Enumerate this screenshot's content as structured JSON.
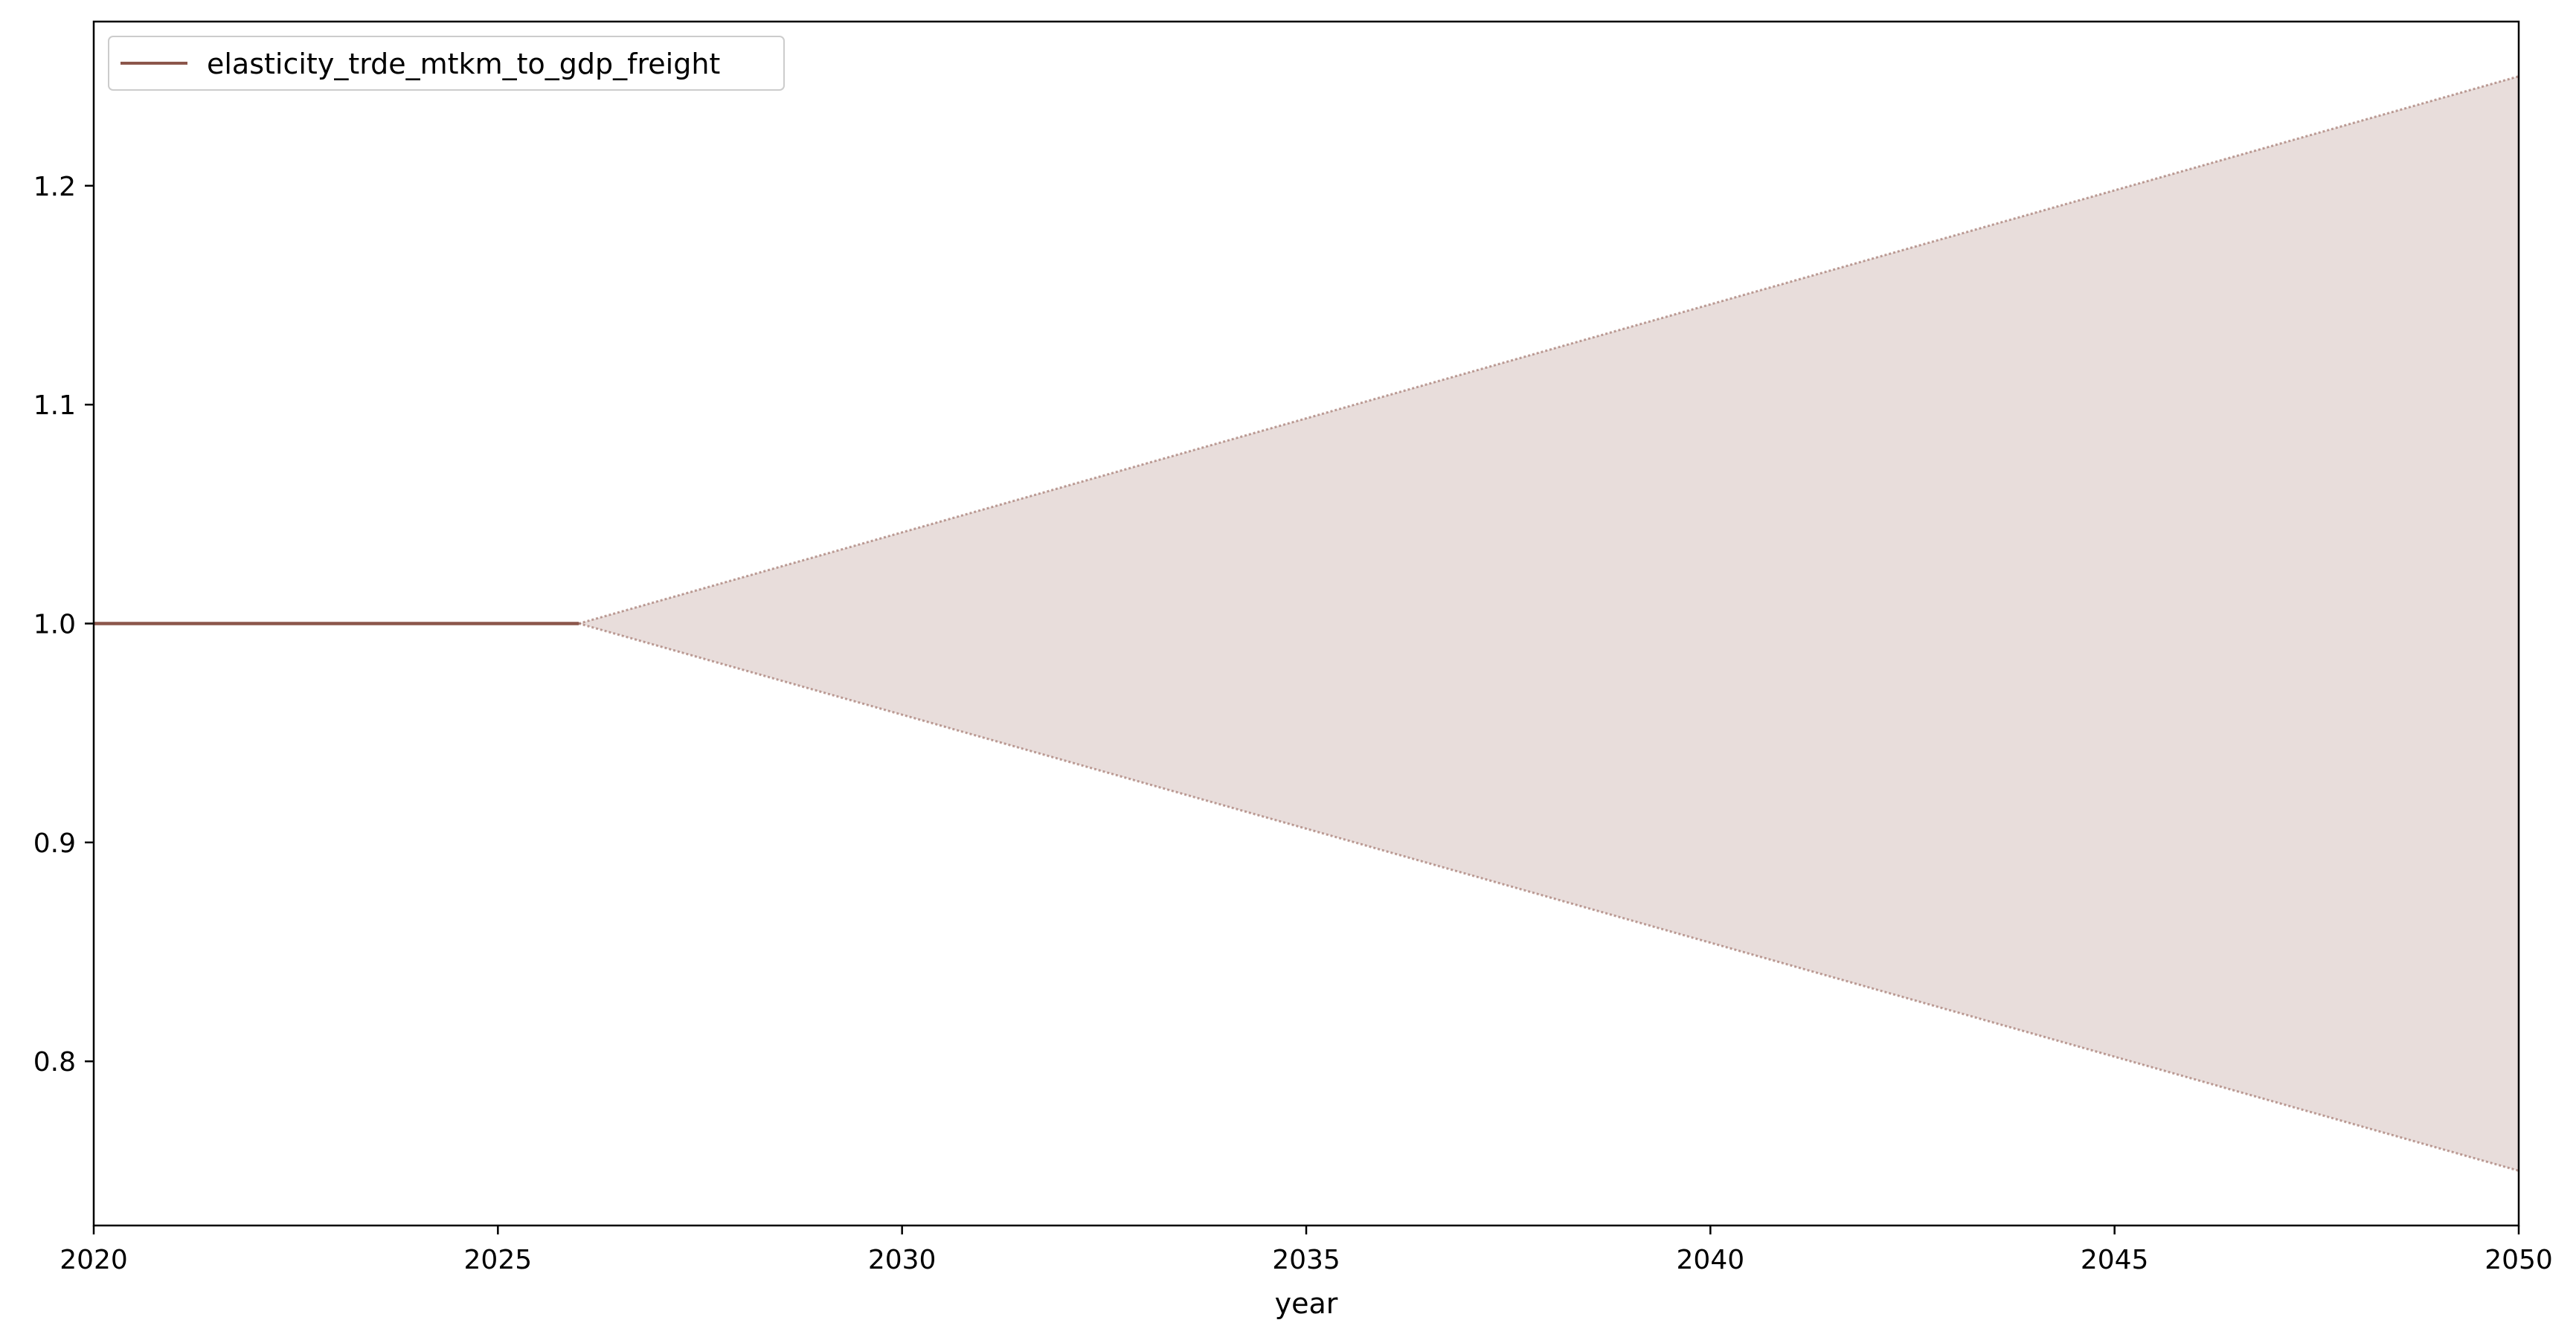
{
  "chart_data": {
    "type": "line",
    "title": "",
    "xlabel": "year",
    "ylabel": "",
    "xlim": [
      2020,
      2050
    ],
    "ylim": [
      0.725,
      1.275
    ],
    "xticks": [
      2020,
      2025,
      2030,
      2035,
      2040,
      2045,
      2050
    ],
    "xtick_labels": [
      "2020",
      "2025",
      "2030",
      "2035",
      "2040",
      "2045",
      "2050"
    ],
    "yticks": [
      0.8,
      0.9,
      1.0,
      1.1,
      1.2
    ],
    "ytick_labels": [
      "0.8",
      "0.9",
      "1.0",
      "1.1",
      "1.2"
    ],
    "grid": false,
    "legend": {
      "placement": "top-left"
    },
    "series": [
      {
        "name": "elasticity_trde_mtkm_to_gdp_freight",
        "color": "#8c564b",
        "x": [
          2020,
          2026
        ],
        "y": [
          1.0,
          1.0
        ]
      }
    ],
    "band": {
      "color": "#8c564b",
      "fill_opacity": 0.2,
      "x": [
        2026,
        2050
      ],
      "upper": [
        1.0,
        1.25
      ],
      "lower": [
        1.0,
        0.75
      ]
    }
  }
}
